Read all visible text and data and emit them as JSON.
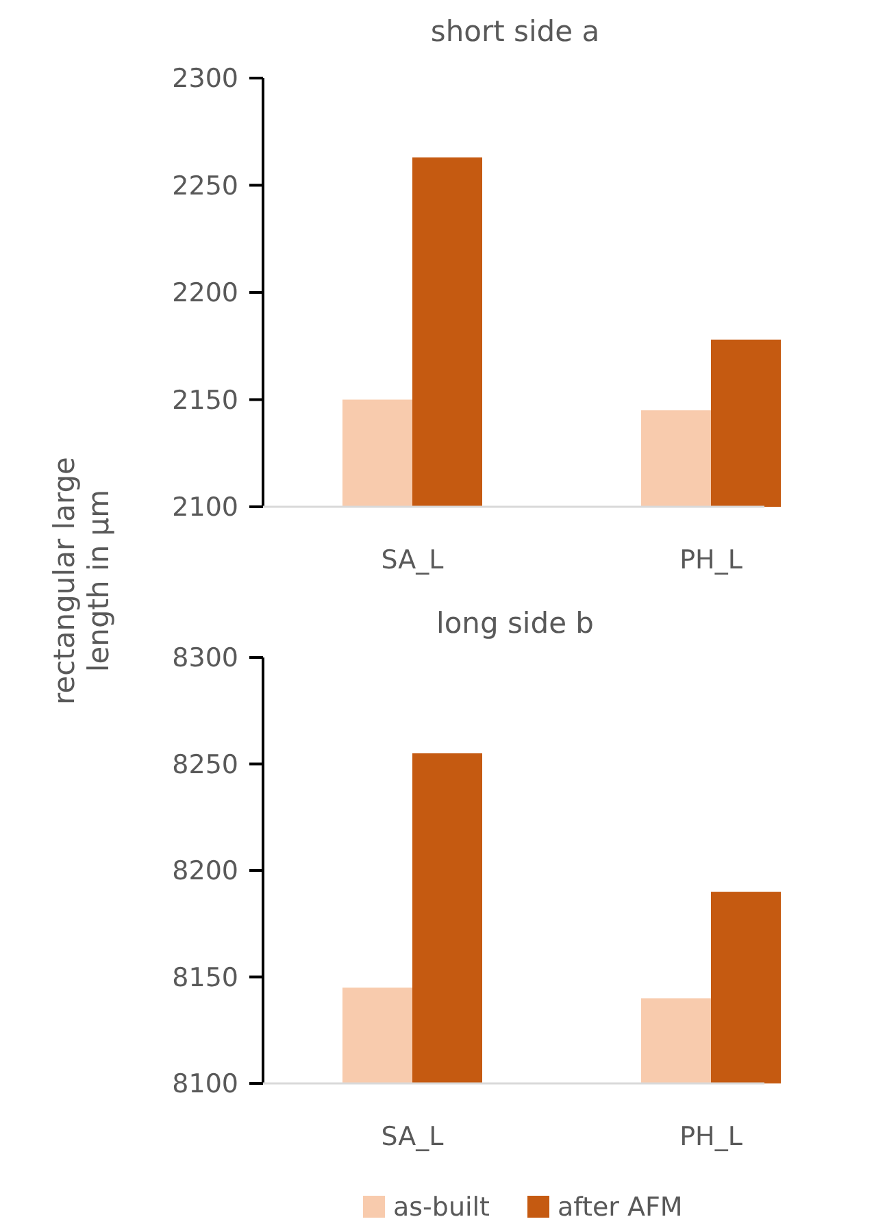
{
  "chart_data": [
    {
      "type": "bar",
      "title": "short side a",
      "ylabel": "rectangular large length in µm",
      "categories": [
        "SA_L",
        "PH_L"
      ],
      "series": [
        {
          "color": "#f8cbad",
          "values": [
            2150,
            2145
          ]
        },
        {
          "color": "#c55a11",
          "values": [
            2263,
            2178
          ]
        }
      ],
      "ylim": [
        2100,
        2300
      ],
      "yticks": [
        2100,
        2150,
        2200,
        2250,
        2300
      ],
      "grid": false
    },
    {
      "type": "bar",
      "title": "long side b",
      "categories": [
        "SA_L",
        "PH_L"
      ],
      "series": [
        {
          "name": "as-built",
          "color": "#f8cbad",
          "values": [
            8145,
            8140
          ]
        },
        {
          "name": "after AFM",
          "color": "#c55a11",
          "values": [
            8255,
            8190
          ]
        }
      ],
      "ylim": [
        8100,
        8300
      ],
      "yticks": [
        8100,
        8150,
        8200,
        8250,
        8300
      ],
      "grid": false,
      "legend": "bottom"
    }
  ]
}
